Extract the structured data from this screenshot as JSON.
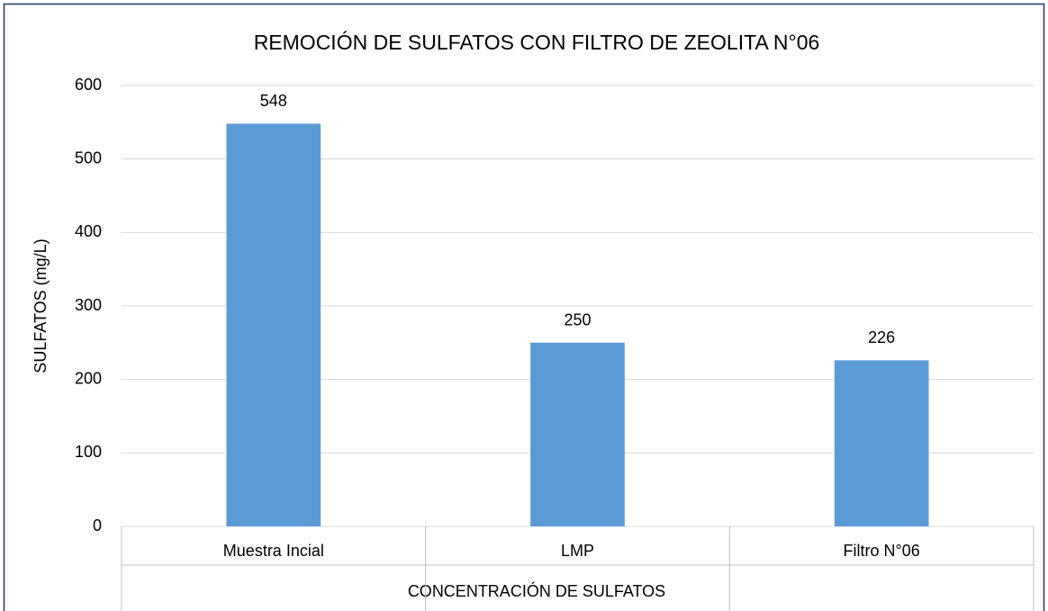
{
  "chart_data": {
    "type": "bar",
    "title": "REMOCIÓN DE SULFATOS CON FILTRO DE ZEOLITA N°06",
    "xlabel": "CONCENTRACIÓN DE SULFATOS",
    "ylabel": "SULFATOS (mg/L)",
    "categories": [
      "Muestra Incial",
      "LMP",
      "Filtro  N°06"
    ],
    "values": [
      548,
      250,
      226
    ],
    "color": "#5b9bd5",
    "ylim": [
      0,
      600
    ],
    "yticks": [
      0,
      100,
      200,
      300,
      400,
      500,
      600
    ],
    "grid": true,
    "data_labels": true
  }
}
